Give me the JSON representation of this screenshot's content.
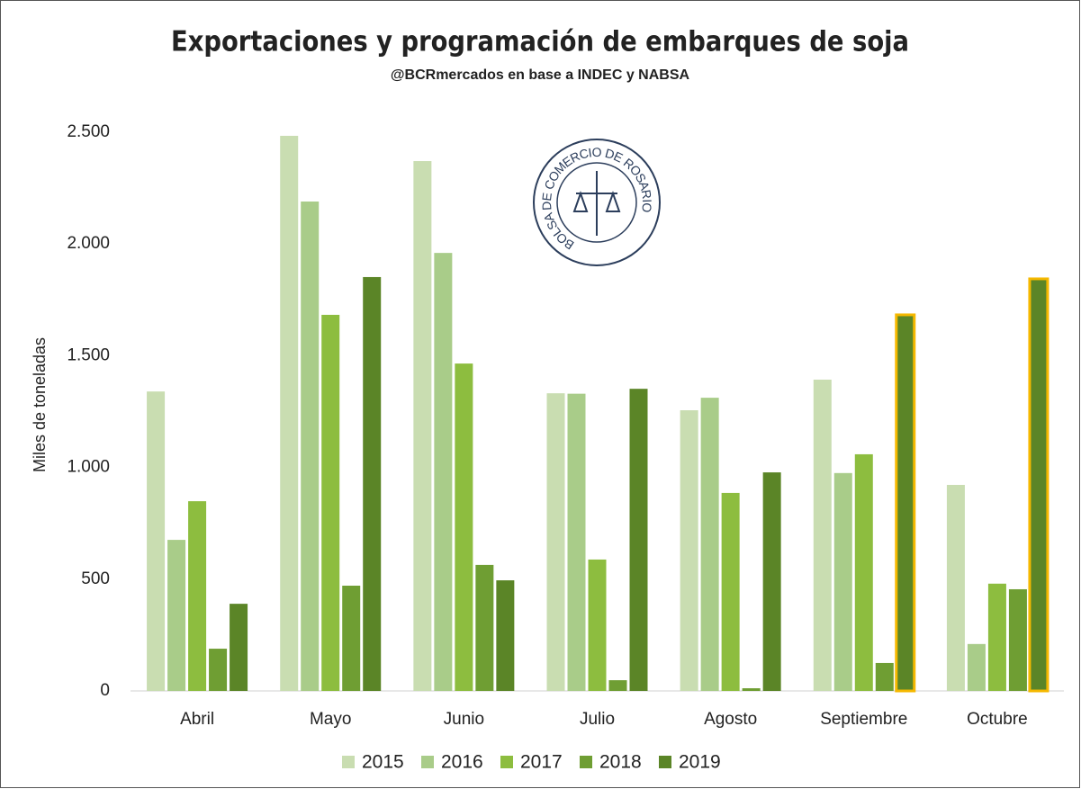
{
  "chart_data": {
    "type": "bar",
    "title": "Exportaciones y programación de embarques de soja",
    "subtitle": "@BCRmercados en base a INDEC y NABSA",
    "y_label": "Miles de toneladas",
    "logo_text": "BOLSA DE COMERCIO DE ROSARIO",
    "categories": [
      "Abril",
      "Mayo",
      "Junio",
      "Julio",
      "Agosto",
      "Septiembre",
      "Octubre"
    ],
    "series": [
      {
        "name": "2015",
        "color": "#c9ddb1",
        "values": [
          1340,
          2484,
          2371,
          1332,
          1256,
          1393,
          922
        ]
      },
      {
        "name": "2016",
        "color": "#a9cc89",
        "values": [
          676,
          2190,
          1960,
          1330,
          1312,
          975,
          210
        ]
      },
      {
        "name": "2017",
        "color": "#8dbd3f",
        "values": [
          849,
          1683,
          1465,
          588,
          886,
          1059,
          480
        ]
      },
      {
        "name": "2018",
        "color": "#6f9e33",
        "values": [
          189,
          471,
          564,
          48,
          12,
          125,
          455
        ]
      },
      {
        "name": "2019",
        "color": "#5b8527",
        "values": [
          390,
          1852,
          495,
          1352,
          978,
          1683,
          1844
        ],
        "outline_color": "#f5b800",
        "outlined": [
          false,
          false,
          false,
          false,
          false,
          true,
          true
        ]
      }
    ],
    "ylim": [
      0,
      2500
    ],
    "yticks": [
      0,
      500,
      {
        "value": 1000,
        "label": "1.000"
      },
      {
        "value": 1500,
        "label": "1.500"
      },
      {
        "value": 2000,
        "label": "2.000"
      },
      {
        "value": 2500,
        "label": "2.500"
      }
    ],
    "legend": "bottom"
  }
}
